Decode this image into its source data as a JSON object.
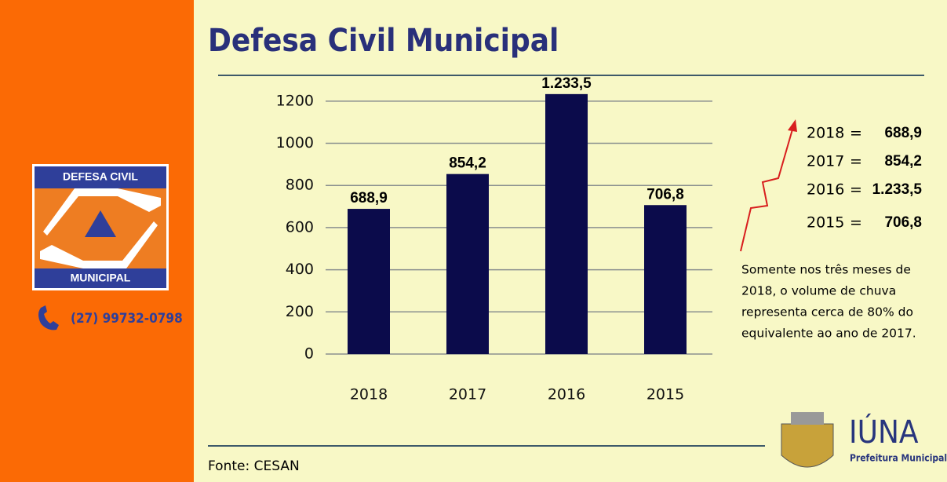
{
  "title": "Defesa Civil Municipal",
  "logo": {
    "top": "DEFESA CIVIL",
    "bottom": "MUNICIPAL"
  },
  "phone": "(27) 99732-0798",
  "summary_separator": "=",
  "note": [
    "Somente nos três meses de",
    "2018, o volume de chuva",
    "representa cerca de 80% do",
    "equivalente ao ano de 2017."
  ],
  "source": "Fonte: CESAN",
  "brand": {
    "name": "IÚNA",
    "subtitle": "Prefeitura Municipal"
  },
  "chart_data": {
    "type": "bar",
    "categories": [
      "2018",
      "2017",
      "2016",
      "2015"
    ],
    "values": [
      688.9,
      854.2,
      1233.5,
      706.8
    ],
    "value_labels": [
      "688,9",
      "854,2",
      "1.233,5",
      "706,8"
    ],
    "color": "#0b0b4b",
    "ylim": [
      0,
      1300
    ],
    "yticks": [
      0,
      200,
      400,
      600,
      800,
      1000,
      1200
    ],
    "grid": true
  }
}
